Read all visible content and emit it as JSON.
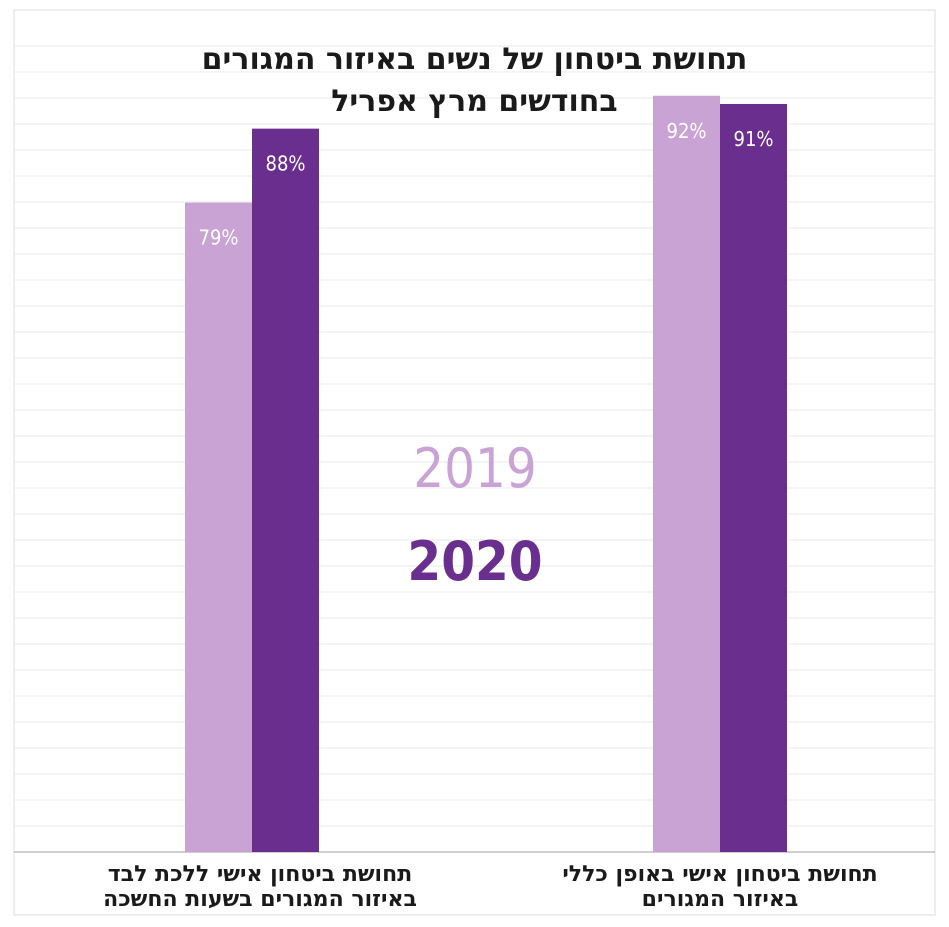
{
  "chart_data": {
    "type": "bar",
    "title_line1": "תחושת ביטחון של נשים באיזור המגורים",
    "title_line2": "בחודשים מרץ אפריל",
    "categories": [
      {
        "line1": "תחושת ביטחון אישי ללכת לבד",
        "line2": "באיזור המגורים בשעות החשכה"
      },
      {
        "line1": "תחושת ביטחון אישי באופן כללי",
        "line2": "באיזור המגורים"
      }
    ],
    "series": [
      {
        "name": "2019",
        "color": "#c9a3d3",
        "values": [
          79,
          92
        ],
        "labels": [
          "79%",
          "92%"
        ]
      },
      {
        "name": "2020",
        "color": "#6a2f8e",
        "values": [
          88,
          91
        ],
        "labels": [
          "88%",
          "91%"
        ]
      }
    ],
    "ylim": [
      0,
      100
    ],
    "grid": true,
    "legend_position": "center"
  }
}
